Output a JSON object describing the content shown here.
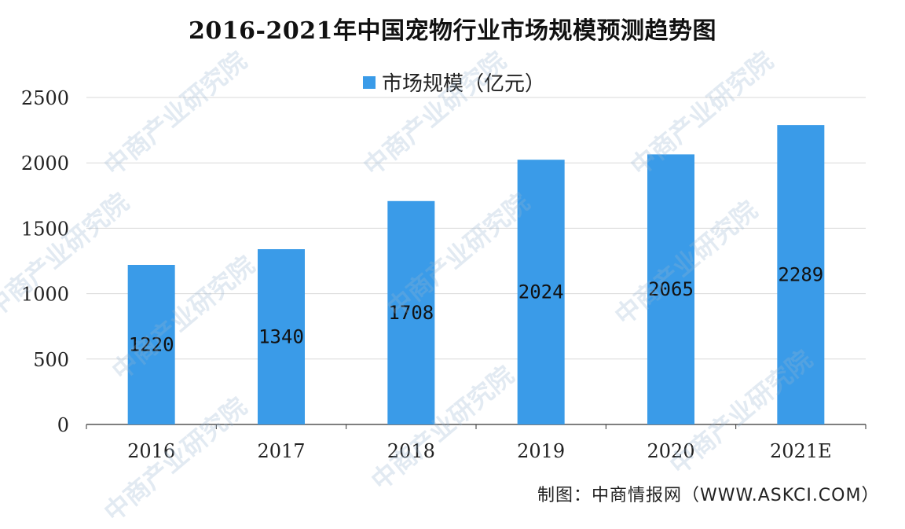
{
  "chart_data": {
    "type": "bar",
    "title": "2016-2021年中国宠物行业市场规模预测趋势图",
    "categories": [
      "2016",
      "2017",
      "2018",
      "2019",
      "2020",
      "2021E"
    ],
    "series": [
      {
        "name": "市场规模（亿元）",
        "values": [
          1220,
          1340,
          1708,
          2024,
          2065,
          2289
        ],
        "color": "#3A9BE8"
      }
    ],
    "ylim": [
      0,
      2500
    ],
    "yticks": [
      0,
      500,
      1000,
      1500,
      2000,
      2500
    ],
    "grid": true,
    "legend_position": "top-center",
    "data_labels": [
      "1220",
      "1340",
      "1708",
      "2024",
      "2065",
      "2289"
    ]
  },
  "source": "制图：中商情报网（WWW.ASKCI.COM）",
  "watermark": "中商产业研究院",
  "colors": {
    "bar": "#3A9BE8",
    "grid": "#d9d9d9",
    "axis": "#333333"
  }
}
